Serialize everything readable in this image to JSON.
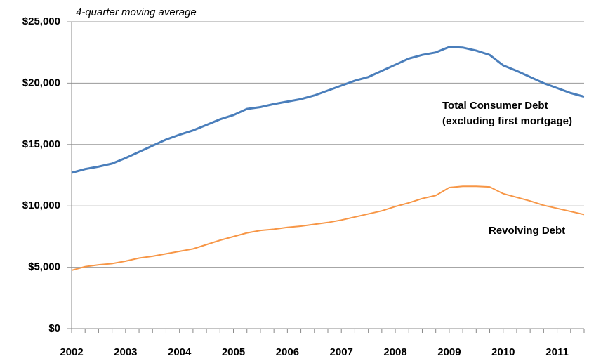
{
  "chart_data": {
    "type": "line",
    "annotation": "4-quarter moving average",
    "categories": [
      "2002",
      null,
      null,
      null,
      "2003",
      null,
      null,
      null,
      "2004",
      null,
      null,
      null,
      "2005",
      null,
      null,
      null,
      "2006",
      null,
      null,
      null,
      "2007",
      null,
      null,
      null,
      "2008",
      null,
      null,
      null,
      "2009",
      null,
      null,
      null,
      "2010",
      null,
      null,
      null,
      "2011",
      null,
      null
    ],
    "series": [
      {
        "name": "Total Consumer Debt\n(excluding first mortgage)",
        "color": "#4a7ebb",
        "values": [
          12700,
          13000,
          13200,
          13450,
          13900,
          14400,
          14900,
          15400,
          15800,
          16150,
          16600,
          17050,
          17400,
          17900,
          18050,
          18300,
          18500,
          18700,
          19000,
          19400,
          19800,
          20200,
          20500,
          21000,
          21500,
          22000,
          22300,
          22500,
          22950,
          22900,
          22650,
          22300,
          21450,
          21000,
          20500,
          20000,
          19600,
          19200,
          18900
        ]
      },
      {
        "name": "Revolving Debt",
        "color": "#f79646",
        "values": [
          4750,
          5050,
          5200,
          5300,
          5500,
          5750,
          5900,
          6100,
          6300,
          6500,
          6850,
          7200,
          7500,
          7800,
          8000,
          8100,
          8250,
          8350,
          8500,
          8650,
          8850,
          9100,
          9350,
          9600,
          9950,
          10250,
          10600,
          10850,
          11500,
          11600,
          11600,
          11550,
          11000,
          10700,
          10400,
          10050,
          9800,
          9550,
          9300
        ]
      }
    ],
    "ylim": [
      0,
      25000
    ],
    "yticks": [
      {
        "value": 0,
        "label": "$0"
      },
      {
        "value": 5000,
        "label": "$5,000"
      },
      {
        "value": 10000,
        "label": "$10,000"
      },
      {
        "value": 15000,
        "label": "$15,000"
      },
      {
        "value": 20000,
        "label": "$20,000"
      },
      {
        "value": 25000,
        "label": "$25,000"
      }
    ],
    "grid": true
  }
}
